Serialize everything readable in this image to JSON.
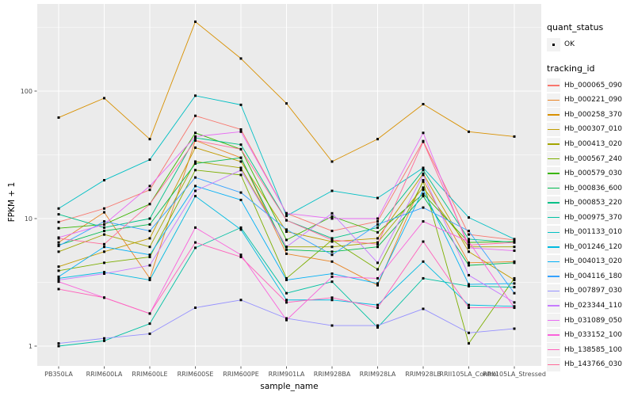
{
  "figure": {
    "background": "#FFFFFF",
    "panel_bg": "#EBEBEB",
    "grid_major_color": "#FFFFFF",
    "grid_minor_color": "#FFFFFF",
    "tick_mark_color": "#333333",
    "tick_label_color": "#4D4D4D",
    "axis_title_color": "#000000",
    "point_color": "#000000"
  },
  "legend": {
    "quant_status_title": "quant_status",
    "ok_label": "OK",
    "tracking_title": "tracking_id",
    "key_bg": "#F2F2F2"
  },
  "chart_data": {
    "type": "line",
    "title": "",
    "x_axis": {
      "label": "sample_name"
    },
    "y_axis": {
      "label": "FPKM + 1",
      "scale": "log10",
      "ticks": [
        1,
        10,
        100
      ],
      "tick_labels": [
        "1",
        "10",
        "100"
      ],
      "minor_ticks": [
        3.162,
        31.62,
        316.2
      ],
      "range": [
        0.95,
        470
      ]
    },
    "grid": true,
    "legend_position": "right",
    "x_categories": [
      "PB350LA",
      "RRIM600LA",
      "RRIM600LE",
      "RRIM600SE",
      "RRIM600PE",
      "RRIM901LA",
      "RRIM928BA",
      "RRIM928LA",
      "RRIM928LB",
      "RRII105LA_Control",
      "RRII105LA_Stressed"
    ],
    "point_shape": "square",
    "series": [
      {
        "id": "Hb_000065_090",
        "color": "#F8766D",
        "quant_status": "OK",
        "values": [
          9.4,
          12,
          16.8,
          64,
          50,
          11,
          8.0,
          9.5,
          40.5,
          7.5,
          6.8
        ]
      },
      {
        "id": "Hb_000221_090",
        "color": "#E88526",
        "quant_status": "OK",
        "values": [
          6.5,
          11.2,
          3.4,
          41,
          30,
          5.3,
          4.6,
          3.0,
          20,
          4.5,
          4.6
        ]
      },
      {
        "id": "Hb_000258_370",
        "color": "#D89000",
        "quant_status": "OK",
        "values": [
          62,
          88,
          42,
          350,
          180,
          80,
          28,
          42,
          79,
          48,
          44
        ]
      },
      {
        "id": "Hb_000307_010",
        "color": "#C09B00",
        "quant_status": "OK",
        "values": [
          4.2,
          5.5,
          7.0,
          36,
          28,
          7.9,
          6.6,
          7.0,
          22.5,
          5.5,
          3.3
        ]
      },
      {
        "id": "Hb_000413_020",
        "color": "#A3A500",
        "quant_status": "OK",
        "values": [
          5.5,
          7.5,
          6.0,
          28,
          25,
          6.0,
          6.0,
          6.5,
          17.5,
          6.0,
          6.0
        ]
      },
      {
        "id": "Hb_000567_240",
        "color": "#7CAE00",
        "quant_status": "OK",
        "values": [
          3.9,
          4.5,
          5.0,
          24,
          22,
          3.4,
          6.8,
          4.0,
          19.5,
          1.05,
          3.4
        ]
      },
      {
        "id": "Hb_000579_030",
        "color": "#39B600",
        "quant_status": "OK",
        "values": [
          8.4,
          9.0,
          13,
          47,
          35,
          6.8,
          10.4,
          7.8,
          15.6,
          6.5,
          6.6
        ]
      },
      {
        "id": "Hb_000836_600",
        "color": "#00BB4E",
        "quant_status": "OK",
        "values": [
          6.2,
          8.0,
          9.0,
          27,
          30,
          5.7,
          5.5,
          6.0,
          15.0,
          4.3,
          4.5
        ]
      },
      {
        "id": "Hb_000853_220",
        "color": "#00C087",
        "quant_status": "OK",
        "values": [
          10.8,
          8.5,
          10,
          43,
          38,
          9.7,
          7.0,
          8.5,
          24,
          6.9,
          6.5
        ]
      },
      {
        "id": "Hb_000975_370",
        "color": "#00C1A3",
        "quant_status": "OK",
        "values": [
          1.0,
          1.1,
          1.5,
          5.9,
          8.5,
          2.6,
          3.2,
          1.4,
          3.4,
          2.95,
          2.9
        ]
      },
      {
        "id": "Hb_001133_010",
        "color": "#00BFC4",
        "quant_status": "OK",
        "values": [
          12,
          20,
          29,
          92,
          78,
          10.5,
          16.5,
          14.5,
          25,
          10.2,
          6.9
        ]
      },
      {
        "id": "Hb_001246_120",
        "color": "#00BAE0",
        "quant_status": "OK",
        "values": [
          3.4,
          3.8,
          3.3,
          15,
          8.2,
          2.3,
          2.3,
          2.1,
          4.6,
          2.1,
          2.05
        ]
      },
      {
        "id": "Hb_004013_020",
        "color": "#00B0F6",
        "quant_status": "OK",
        "values": [
          3.5,
          6.0,
          5.2,
          18,
          14,
          3.3,
          3.7,
          3.1,
          16.8,
          3.05,
          3.1
        ]
      },
      {
        "id": "Hb_004116_180",
        "color": "#35A2FF",
        "quant_status": "OK",
        "values": [
          6.1,
          9.5,
          8.0,
          21,
          16,
          8.2,
          5.2,
          9.0,
          12.2,
          8.0,
          2.6
        ]
      },
      {
        "id": "Hb_007897_030",
        "color": "#9590FF",
        "quant_status": "OK",
        "values": [
          1.05,
          1.15,
          1.25,
          2.0,
          2.3,
          1.65,
          1.45,
          1.45,
          1.96,
          1.27,
          1.37
        ]
      },
      {
        "id": "Hb_023344_110",
        "color": "#C77CFF",
        "quant_status": "OK",
        "values": [
          3.3,
          3.7,
          4.3,
          16.5,
          24,
          6.0,
          11,
          4.5,
          22,
          3.6,
          2.2
        ]
      },
      {
        "id": "Hb_031089_050",
        "color": "#E76BF3",
        "quant_status": "OK",
        "values": [
          7.1,
          9.0,
          18,
          44,
          48,
          11,
          10,
          10,
          47,
          5.9,
          5.6
        ]
      },
      {
        "id": "Hb_033152_100",
        "color": "#FA62DB",
        "quant_status": "OK",
        "values": [
          3.2,
          2.4,
          1.8,
          8.5,
          5.2,
          1.6,
          3.5,
          3.4,
          9.5,
          6.6,
          2.0
        ]
      },
      {
        "id": "Hb_138585_100",
        "color": "#FF62BC",
        "quant_status": "OK",
        "values": [
          2.8,
          2.4,
          1.8,
          6.5,
          5.0,
          2.2,
          2.4,
          2.0,
          6.6,
          2.0,
          2.0
        ]
      },
      {
        "id": "Hb_143766_030",
        "color": "#FF6A98",
        "quant_status": "OK",
        "values": [
          7.0,
          6.3,
          13,
          41,
          35,
          9.7,
          6.8,
          6.3,
          40,
          6.2,
          6.5
        ]
      }
    ]
  }
}
